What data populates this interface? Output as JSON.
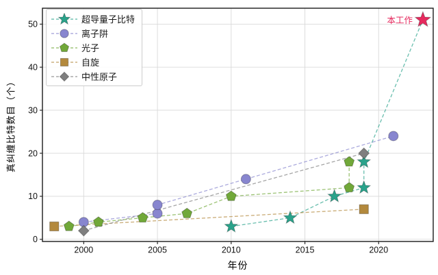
{
  "chart_data": {
    "type": "scatter",
    "title": "",
    "xlabel": "年份",
    "ylabel": "真纠缠比特数目（个）",
    "xlim": [
      1997.2,
      2023.7
    ],
    "ylim": [
      -0.5,
      53.7
    ],
    "xticks": [
      2000,
      2005,
      2010,
      2015,
      2020
    ],
    "yticks": [
      0,
      10,
      20,
      30,
      40,
      50
    ],
    "grid": true,
    "legend_position": "upper-left",
    "series": [
      {
        "name": "超导量子比特",
        "marker": "star",
        "color": "#2aa38b",
        "points": [
          [
            2010,
            3
          ],
          [
            2014,
            5
          ],
          [
            2017,
            10
          ],
          [
            2019,
            12
          ],
          [
            2019,
            18
          ]
        ]
      },
      {
        "name": "离子阱",
        "marker": "circle",
        "color": "#8886cf",
        "points": [
          [
            2000,
            4
          ],
          [
            2005,
            6
          ],
          [
            2005,
            8
          ],
          [
            2011,
            14
          ],
          [
            2021,
            24
          ]
        ]
      },
      {
        "name": "光子",
        "marker": "pentagon",
        "color": "#71a839",
        "points": [
          [
            1999,
            3
          ],
          [
            2001,
            4
          ],
          [
            2004,
            5
          ],
          [
            2007,
            6
          ],
          [
            2010,
            10
          ],
          [
            2018,
            12
          ],
          [
            2018,
            18
          ]
        ]
      },
      {
        "name": "自旋",
        "marker": "square",
        "color": "#b3893d",
        "points": [
          [
            1998,
            3
          ],
          [
            2019,
            7
          ]
        ]
      },
      {
        "name": "中性原子",
        "marker": "diamond",
        "color": "#7f7f7f",
        "points": [
          [
            2000,
            2
          ],
          [
            2019,
            20
          ]
        ]
      }
    ],
    "highlight": {
      "label": "本工作",
      "marker": "star",
      "color": "#e62a5e",
      "point": [
        2023,
        51
      ],
      "connects_series": "超导量子比特"
    }
  }
}
